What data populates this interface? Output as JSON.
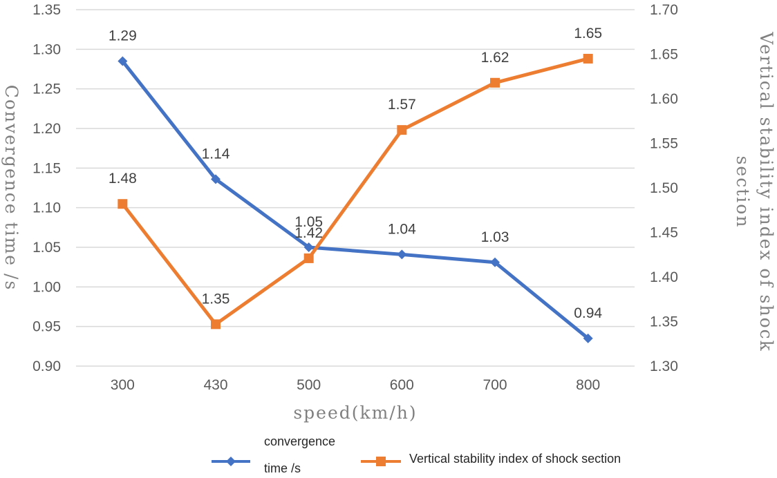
{
  "chart_data": {
    "type": "line",
    "xlabel": "speed(km/h)",
    "ylabel_left": "Convergence time /s",
    "ylabel_right_lines": [
      "Vertical stability index of shock",
      "section"
    ],
    "categories": [
      "300",
      "430",
      "500",
      "600",
      "700",
      "800"
    ],
    "ylim_left": [
      0.9,
      1.35
    ],
    "yticks_left": [
      "0.90",
      "0.95",
      "1.00",
      "1.05",
      "1.10",
      "1.15",
      "1.20",
      "1.25",
      "1.30",
      "1.35"
    ],
    "ylim_right": [
      1.3,
      1.7
    ],
    "yticks_right": [
      "1.30",
      "1.35",
      "1.40",
      "1.45",
      "1.50",
      "1.55",
      "1.60",
      "1.65",
      "1.70"
    ],
    "grid": true,
    "legend_position": "bottom",
    "series": [
      {
        "name_lines": [
          "convergence",
          "time /s"
        ],
        "axis": "left",
        "color": "#4472C4",
        "marker": "diamond",
        "values": [
          1.285,
          1.136,
          1.05,
          1.041,
          1.031,
          0.935
        ],
        "labels": [
          "1.29",
          "1.14",
          "1.05",
          "1.04",
          "1.03",
          "0.94"
        ]
      },
      {
        "name": "Vertical stability index of shock section",
        "axis": "right",
        "color": "#ED7D31",
        "marker": "square",
        "values": [
          1.482,
          1.347,
          1.421,
          1.565,
          1.618,
          1.645
        ],
        "labels": [
          "1.48",
          "1.35",
          "1.42",
          "1.57",
          "1.62",
          "1.65"
        ]
      }
    ]
  }
}
